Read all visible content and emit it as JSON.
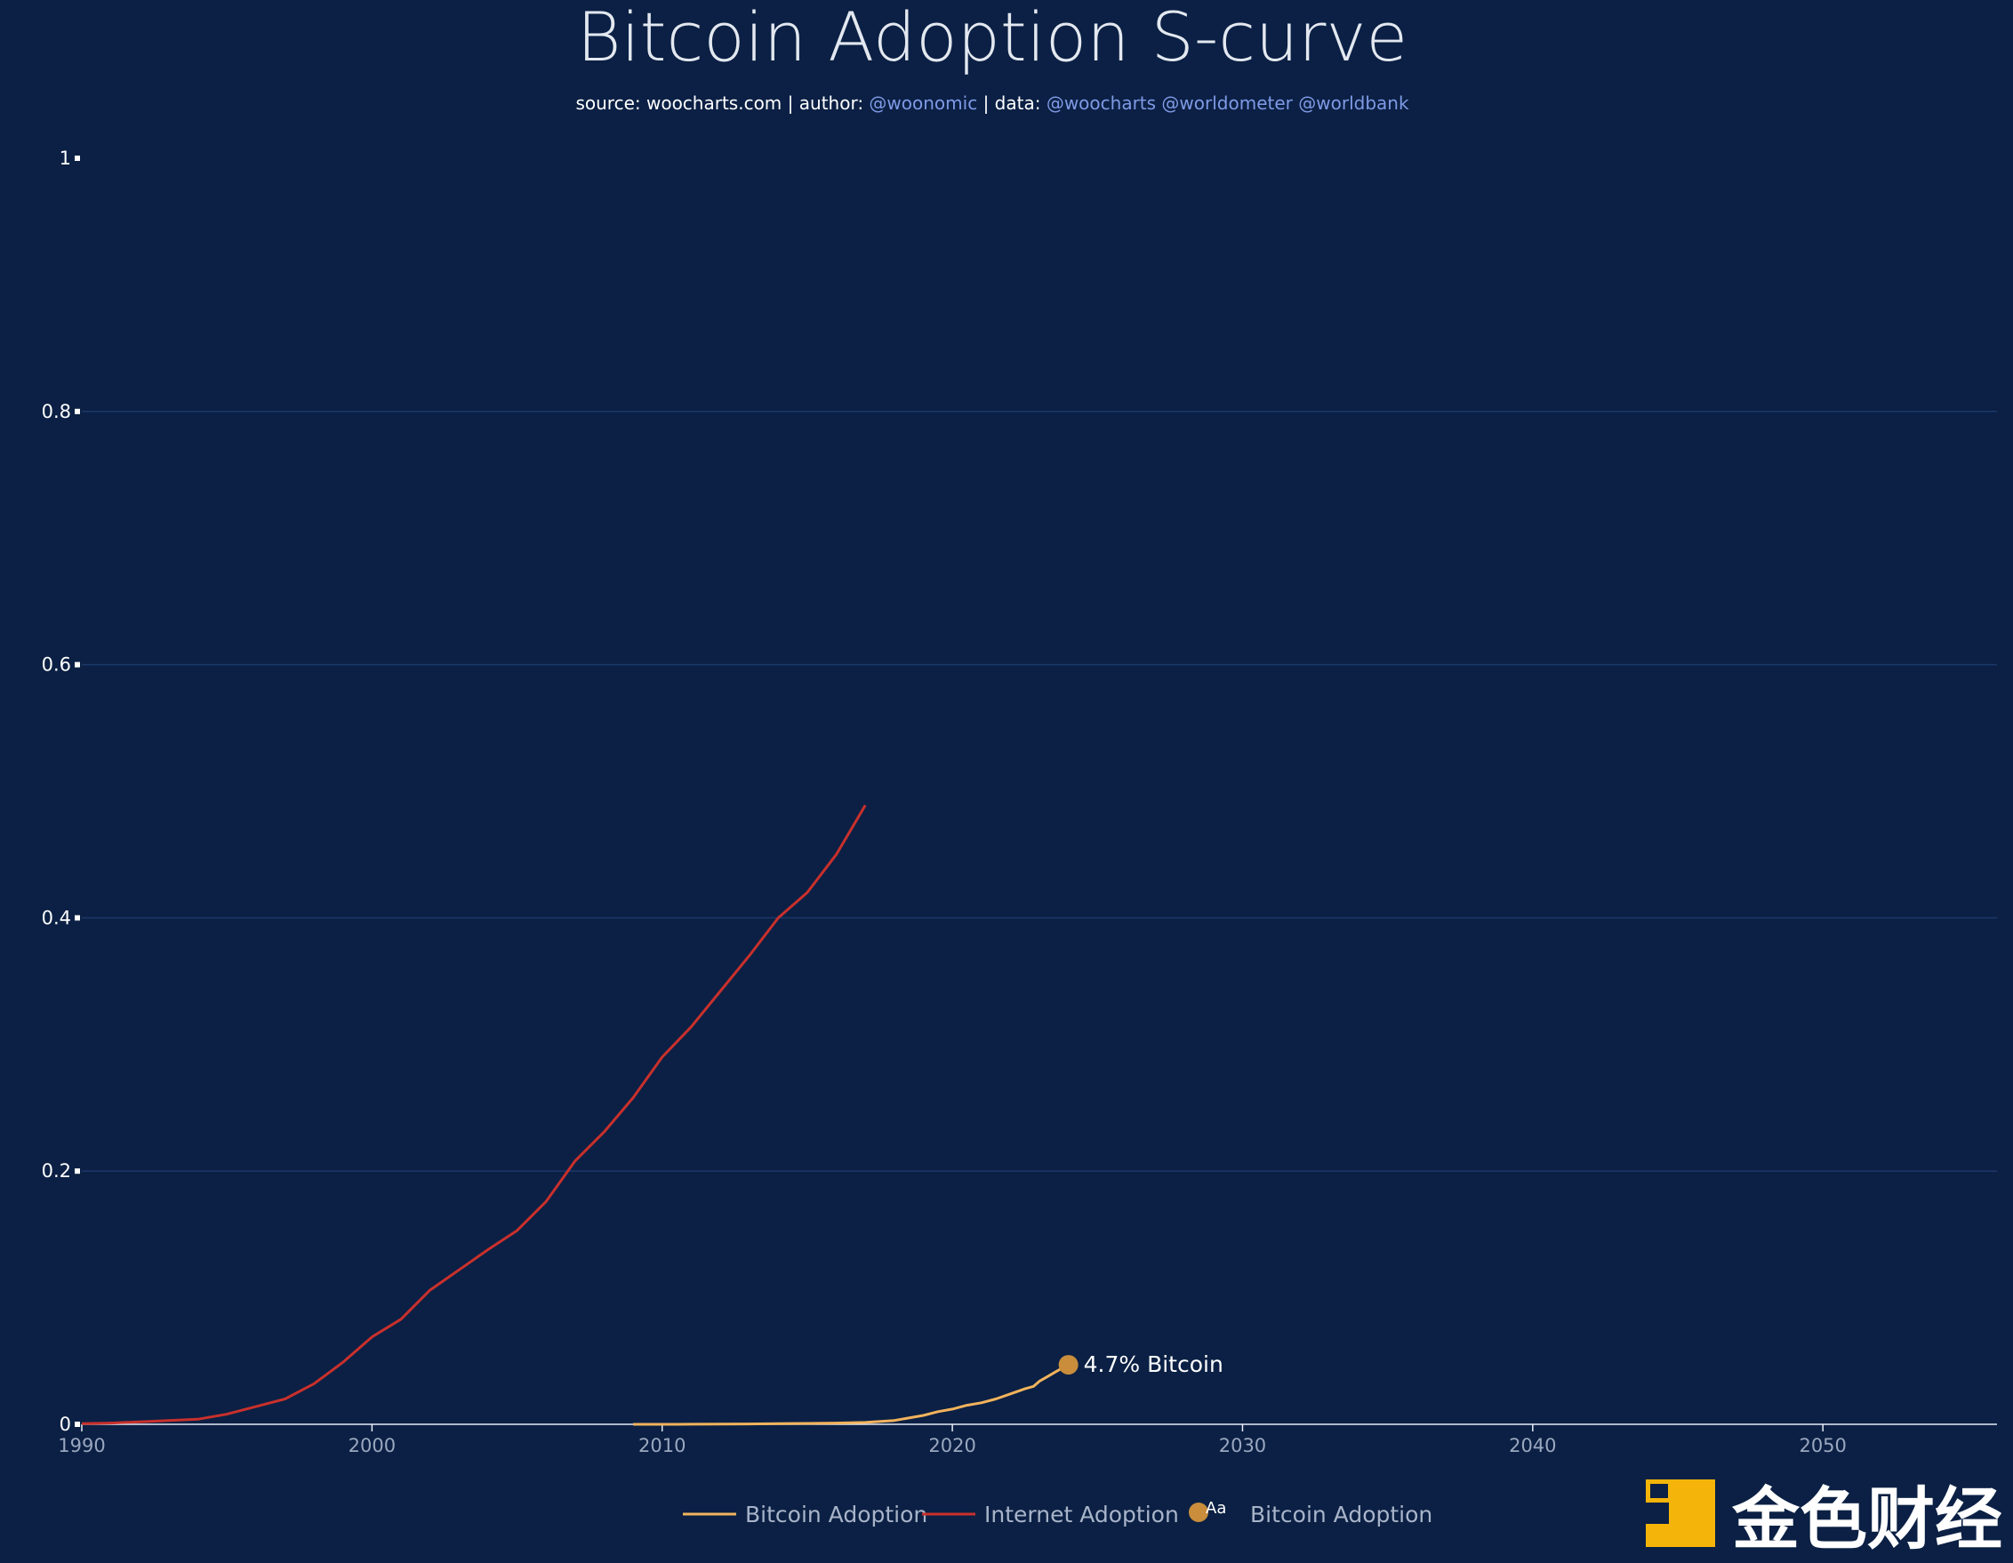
{
  "chart_data": {
    "type": "line",
    "title": "Bitcoin Adoption S-curve",
    "subtitle": {
      "source_label": "source:",
      "source": "woocharts.com",
      "sep1": "|",
      "author_label": "author:",
      "author": "@woonomic",
      "sep2": "|",
      "data_label": "data:",
      "data_sources": "@woocharts @worldometer @worldbank"
    },
    "xlabel": "",
    "ylabel": "",
    "xlim": [
      1990,
      2056
    ],
    "ylim": [
      0,
      1
    ],
    "x_ticks": [
      1990,
      2000,
      2010,
      2020,
      2030,
      2040,
      2050
    ],
    "y_ticks": [
      {
        "value": 0,
        "label": "0"
      },
      {
        "value": 0.2,
        "label": "0.2"
      },
      {
        "value": 0.4,
        "label": "0.4"
      },
      {
        "value": 0.6,
        "label": "0.6"
      },
      {
        "value": 0.8,
        "label": "0.8"
      },
      {
        "value": 1,
        "label": "1"
      }
    ],
    "series": [
      {
        "name": "Internet Adoption",
        "color": "#c9302c",
        "x": [
          1990,
          1991,
          1992,
          1993,
          1994,
          1995,
          1996,
          1997,
          1998,
          1999,
          2000,
          2001,
          2002,
          2003,
          2004,
          2005,
          2006,
          2007,
          2008,
          2009,
          2010,
          2011,
          2012,
          2013,
          2014,
          2015,
          2016,
          2017
        ],
        "values": [
          0.0005,
          0.001,
          0.002,
          0.003,
          0.004,
          0.008,
          0.014,
          0.02,
          0.032,
          0.049,
          0.069,
          0.083,
          0.106,
          0.122,
          0.138,
          0.153,
          0.176,
          0.208,
          0.231,
          0.258,
          0.29,
          0.314,
          0.342,
          0.37,
          0.4,
          0.42,
          0.45,
          0.489
        ]
      },
      {
        "name": "Bitcoin Adoption",
        "color": "#f2b35c",
        "x": [
          2009,
          2010,
          2011,
          2012,
          2013,
          2014,
          2015,
          2016,
          2017,
          2018,
          2018.5,
          2019,
          2019.5,
          2020,
          2020.5,
          2021,
          2021.5,
          2022,
          2022.5,
          2022.8,
          2023,
          2023.3,
          2023.6,
          2024
        ],
        "values": [
          0,
          0,
          0.0001,
          0.0002,
          0.0003,
          0.0005,
          0.0007,
          0.001,
          0.0015,
          0.003,
          0.005,
          0.007,
          0.01,
          0.012,
          0.015,
          0.017,
          0.02,
          0.024,
          0.028,
          0.03,
          0.034,
          0.038,
          0.042,
          0.047
        ]
      }
    ],
    "annotation": {
      "x": 2024,
      "y": 0.047,
      "label": "4.7% Bitcoin",
      "color": "#c98d3c"
    },
    "legend": {
      "placement": "bottom-center",
      "items": [
        {
          "label": "Bitcoin Adoption",
          "color": "#f2b35c",
          "kind": "line"
        },
        {
          "label": "Internet Adoption",
          "color": "#c9302c",
          "kind": "line"
        },
        {
          "label": "Bitcoin Adoption",
          "color": "#c98d3c",
          "kind": "marker",
          "marker_text": "Aa"
        }
      ]
    }
  },
  "watermark": {
    "text": "金色财经",
    "color": "#f5b40a"
  }
}
